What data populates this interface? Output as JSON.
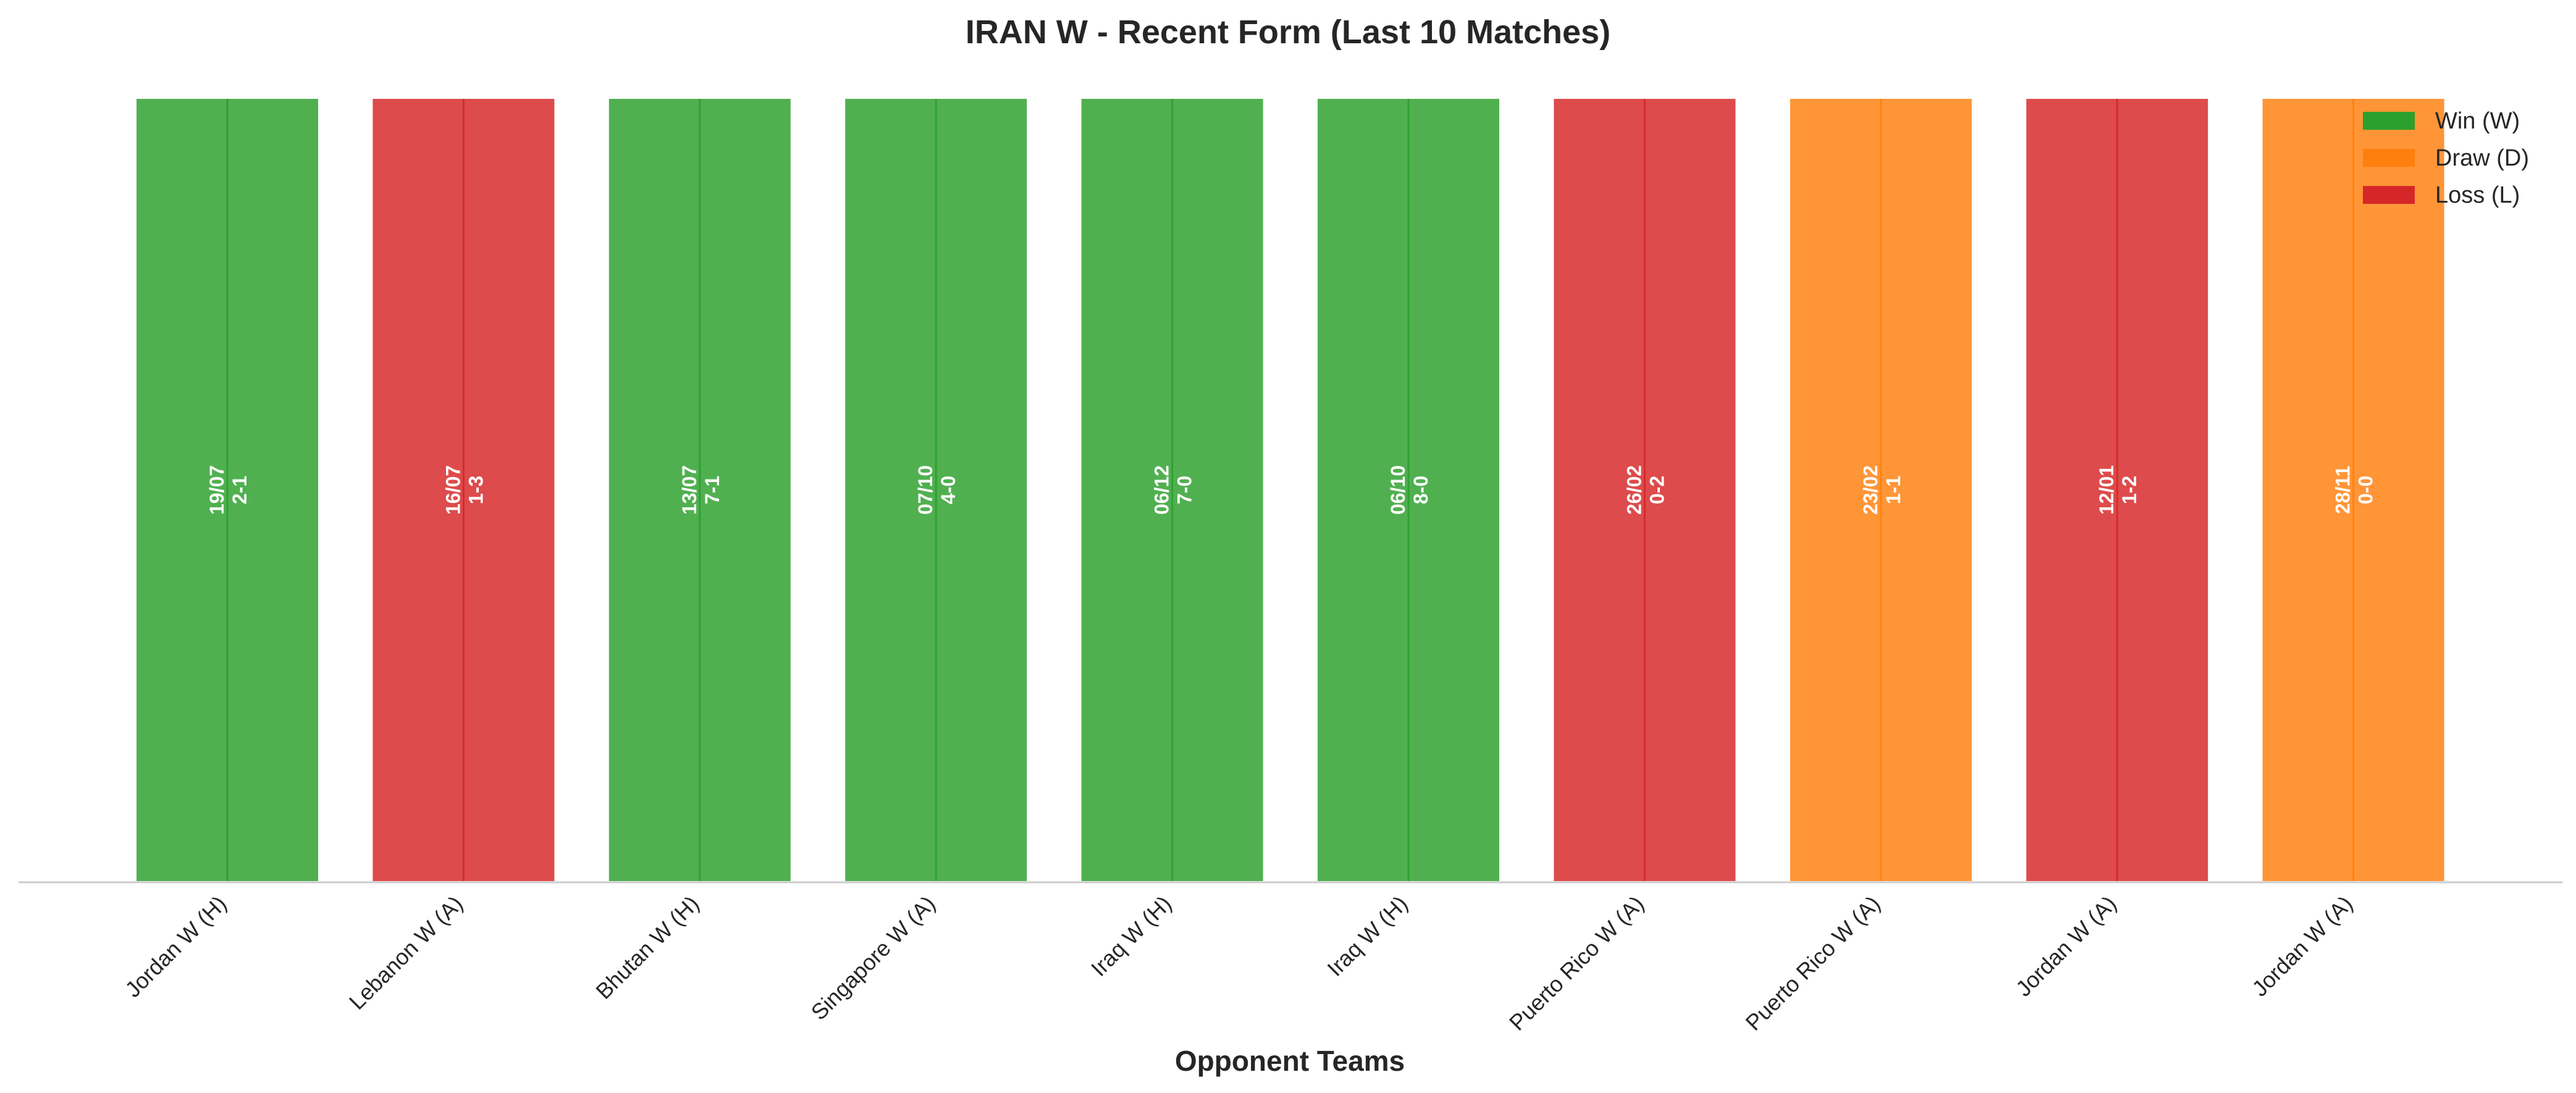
{
  "chart_data": {
    "type": "bar",
    "title": "IRAN W - Recent Form (Last 10 Matches)",
    "xlabel": "Opponent Teams",
    "ylabel": "",
    "ylim": [
      0,
      1
    ],
    "grid": false,
    "legend_position": "top-right",
    "categories": [
      "Jordan W (H)",
      "Lebanon W (A)",
      "Bhutan W (H)",
      "Singapore W (A)",
      "Iraq W (H)",
      "Iraq W (H)",
      "Puerto Rico W (A)",
      "Puerto Rico W (A)",
      "Jordan W (A)",
      "Jordan W (A)"
    ],
    "values": [
      1,
      1,
      1,
      1,
      1,
      1,
      1,
      1,
      1,
      1
    ],
    "results": [
      "W",
      "L",
      "W",
      "W",
      "W",
      "W",
      "L",
      "D",
      "L",
      "D"
    ],
    "dates": [
      "19/07",
      "16/07",
      "13/07",
      "07/10",
      "06/12",
      "06/10",
      "26/02",
      "23/02",
      "12/01",
      "28/11"
    ],
    "scores": [
      "2-1",
      "1-3",
      "7-1",
      "4-0",
      "7-0",
      "8-0",
      "0-2",
      "1-1",
      "1-2",
      "0-0"
    ],
    "legend": [
      {
        "key": "W",
        "label": "Win (W)"
      },
      {
        "key": "D",
        "label": "Draw (D)"
      },
      {
        "key": "L",
        "label": "Loss (L)"
      }
    ],
    "colors": {
      "W": "#2ca02c",
      "D": "#ff7f0e",
      "L": "#d62728"
    }
  }
}
